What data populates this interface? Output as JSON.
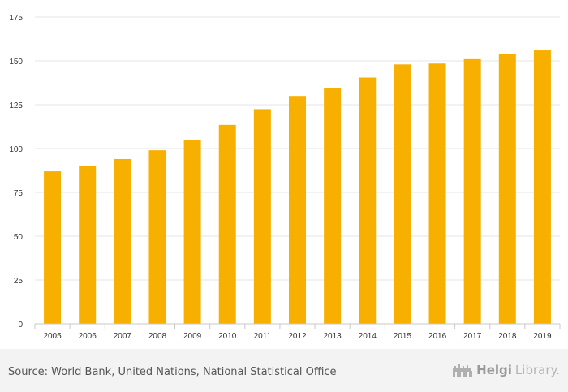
{
  "chart_data": {
    "type": "bar",
    "title": "",
    "xlabel": "",
    "ylabel": "",
    "categories": [
      "2005",
      "2006",
      "2007",
      "2008",
      "2009",
      "2010",
      "2011",
      "2012",
      "2013",
      "2014",
      "2015",
      "2016",
      "2017",
      "2018",
      "2019"
    ],
    "values": [
      87,
      90,
      94,
      99,
      105,
      113.5,
      122.5,
      130,
      134.5,
      140.5,
      148,
      148.5,
      151,
      154,
      156
    ],
    "ylim": [
      0,
      175
    ],
    "yticks": [
      0,
      25,
      50,
      75,
      100,
      125,
      150,
      175
    ],
    "grid": true,
    "bar_color": "#f8b000"
  },
  "footer": {
    "source": "Source: World Bank, United Nations, National Statistical Office",
    "brand_part1": "Helgi",
    "brand_part2": "Library."
  },
  "colors": {
    "bar": "#f8b000",
    "grid": "#e6e6e6",
    "axis_text": "#333333"
  },
  "icons": {
    "brand": "castle-logo-icon"
  }
}
